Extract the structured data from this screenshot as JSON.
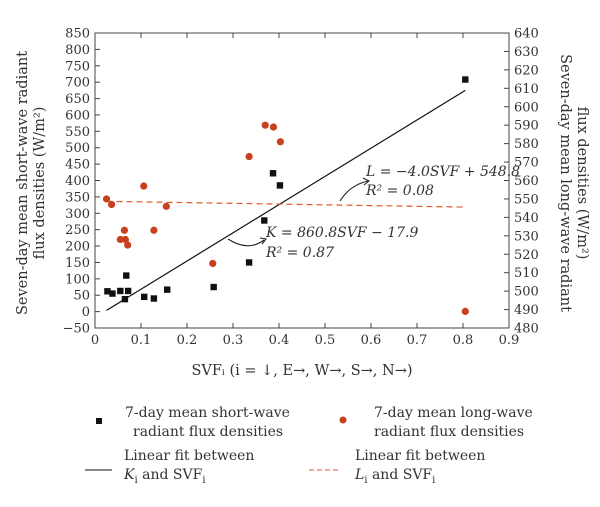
{
  "chart_data": {
    "type": "scatter",
    "xlabel": "SVFᵢ (i = ↓, E→, W→, S→, N→)",
    "ylabel_left_line1": "Seven-day mean short-wave radiant",
    "ylabel_left_line2": "flux densities (W/m²)",
    "ylabel_right_line1": "Seven-day mean long-wave radiant",
    "ylabel_right_line2": "flux densities (W/m²)",
    "xlim": [
      0,
      0.9
    ],
    "ylim_left": [
      -50,
      850
    ],
    "ylim_right": [
      480,
      640
    ],
    "x_ticks": [
      "0",
      "0.1",
      "0.2",
      "0.3",
      "0.4",
      "0.5",
      "0.6",
      "0.7",
      "0.8",
      "0.9"
    ],
    "y_left_ticks": [
      "−50",
      "0",
      "50",
      "100",
      "150",
      "200",
      "250",
      "300",
      "350",
      "400",
      "450",
      "500",
      "550",
      "600",
      "650",
      "700",
      "750",
      "800",
      "850"
    ],
    "y_right_ticks": [
      "480",
      "490",
      "500",
      "510",
      "520",
      "530",
      "540",
      "550",
      "560",
      "570",
      "580",
      "590",
      "600",
      "610",
      "620",
      "630",
      "640"
    ],
    "series": [
      {
        "name": "7-day mean short-wave radiant flux densities",
        "axis": "left",
        "marker": "square",
        "color": "#111111",
        "points": [
          [
            0.027,
            62
          ],
          [
            0.038,
            55
          ],
          [
            0.055,
            63
          ],
          [
            0.065,
            38
          ],
          [
            0.068,
            110
          ],
          [
            0.072,
            63
          ],
          [
            0.107,
            45
          ],
          [
            0.128,
            40
          ],
          [
            0.157,
            67
          ],
          [
            0.258,
            75
          ],
          [
            0.335,
            150
          ],
          [
            0.368,
            278
          ],
          [
            0.387,
            422
          ],
          [
            0.402,
            385
          ],
          [
            0.805,
            708
          ]
        ]
      },
      {
        "name": "7-day mean long-wave radiant flux densities",
        "axis": "right",
        "marker": "circle",
        "color": "#c8401e",
        "points": [
          [
            0.025,
            550
          ],
          [
            0.036,
            547
          ],
          [
            0.055,
            528
          ],
          [
            0.064,
            533
          ],
          [
            0.066,
            528
          ],
          [
            0.071,
            525
          ],
          [
            0.106,
            557
          ],
          [
            0.128,
            533
          ],
          [
            0.155,
            546
          ],
          [
            0.256,
            515
          ],
          [
            0.335,
            573
          ],
          [
            0.37,
            590
          ],
          [
            0.388,
            589
          ],
          [
            0.403,
            581
          ],
          [
            0.805,
            489
          ]
        ]
      }
    ],
    "fits": [
      {
        "name": "Linear fit between Kᵢ and SVFᵢ",
        "axis": "left",
        "slope": 860.8,
        "intercept": -17.9,
        "x_range": [
          0.025,
          0.805
        ],
        "color": "#111111",
        "style": "solid",
        "equation_line1": "K = 860.8SVF − 17.9",
        "equation_line2": "R² = 0.87"
      },
      {
        "name": "Linear fit between Lᵢ and SVFᵢ",
        "axis": "right",
        "slope": -4.0,
        "intercept": 548.8,
        "x_range": [
          0.025,
          0.805
        ],
        "color": "#e05a2b",
        "style": "dashed",
        "equation_line1": "L = −4.0SVF + 548.8",
        "equation_line2": "R² = 0.08"
      }
    ],
    "legend": {
      "placement": "bottom",
      "items": [
        {
          "kind": "square",
          "line1": "7-day mean short-wave",
          "line2": "radiant flux densities"
        },
        {
          "kind": "circle",
          "line1": "7-day mean long-wave",
          "line2": "radiant flux densities"
        },
        {
          "kind": "solid",
          "line1": "Linear fit between",
          "line2_main": "K",
          "line2_sub": "i",
          "line2_rest": " and SVF",
          "line2_sub2": "i"
        },
        {
          "kind": "dashed",
          "line1": "Linear fit between",
          "line2_main": "L",
          "line2_sub": "i",
          "line2_rest": " and SVF",
          "line2_sub2": "i"
        }
      ]
    }
  }
}
